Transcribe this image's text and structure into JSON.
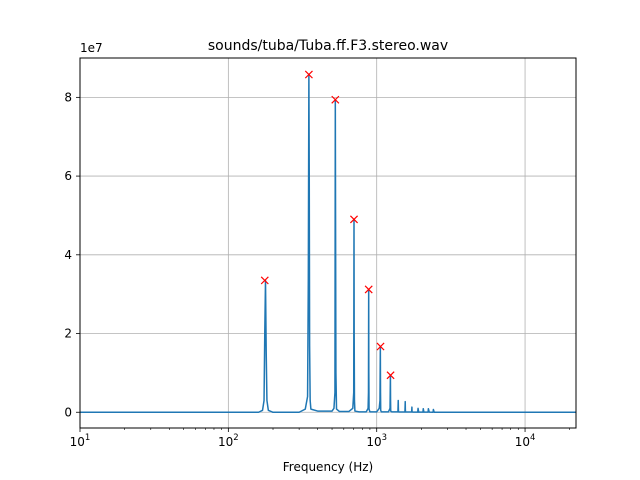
{
  "chart_data": {
    "type": "line",
    "title": "sounds/tuba/Tuba.ff.F3.stereo.wav",
    "xlabel": "Frequency (Hz)",
    "ylabel": "",
    "xscale": "log",
    "xlim": [
      10,
      22050
    ],
    "ylim": [
      -4000000,
      90000000
    ],
    "offset_text": "1e7",
    "grid": true,
    "x_ticks": [
      {
        "value": 10,
        "base": "10",
        "exp": "1"
      },
      {
        "value": 100,
        "base": "10",
        "exp": "2"
      },
      {
        "value": 1000,
        "base": "10",
        "exp": "3"
      },
      {
        "value": 10000,
        "base": "10",
        "exp": "4"
      }
    ],
    "y_ticks": [
      {
        "value": 0,
        "label": "0"
      },
      {
        "value": 20000000,
        "label": "2"
      },
      {
        "value": 40000000,
        "label": "4"
      },
      {
        "value": 60000000,
        "label": "6"
      },
      {
        "value": 80000000,
        "label": "8"
      }
    ],
    "series": [
      {
        "color": "#1f77b4",
        "style": "spectrum-line",
        "x": [
          10,
          160,
          170,
          174,
          176,
          178,
          180,
          182,
          186,
          200,
          300,
          330,
          342,
          346,
          349,
          351,
          353,
          356,
          360,
          400,
          500,
          515,
          523,
          526,
          528,
          531,
          536,
          560,
          650,
          690,
          700,
          703,
          705,
          708,
          713,
          760,
          850,
          875,
          880,
          883,
          885,
          888,
          900,
          1000,
          1040,
          1052,
          1058,
          1061,
          1064,
          1075,
          1200,
          1230,
          1237,
          1240,
          1243,
          1260,
          1390,
          1397,
          1400,
          1403,
          1420,
          1550,
          1557,
          1560,
          1563,
          1580,
          1720,
          1727,
          1730,
          1733,
          1760,
          1890,
          1900,
          1920,
          2050,
          2060,
          2080,
          2220,
          2230,
          2260,
          2400,
          2410,
          2440,
          3000,
          5000,
          22050
        ],
        "y": [
          0,
          0,
          500000,
          3000000,
          20000000,
          33500000,
          15000000,
          3000000,
          500000,
          0,
          0,
          800000,
          4000000,
          34000000,
          85800000,
          60000000,
          17000000,
          3000000,
          800000,
          300000,
          300000,
          1000000,
          5000000,
          79400000,
          50000000,
          10000000,
          800000,
          200000,
          200000,
          1000000,
          5000000,
          49000000,
          20000000,
          3000000,
          300000,
          100000,
          100000,
          1000000,
          5000000,
          31200000,
          10000000,
          800000,
          100000,
          100000,
          1000000,
          3000000,
          16700000,
          5000000,
          500000,
          100000,
          100000,
          1000000,
          9400000,
          3000000,
          300000,
          100000,
          100000,
          3000000,
          1000000,
          100000,
          50000,
          50000,
          2700000,
          800000,
          100000,
          50000,
          50000,
          1300000,
          400000,
          50000,
          30000,
          30000,
          1000000,
          30000,
          30000,
          900000,
          30000,
          20000,
          900000,
          20000,
          10000,
          700000,
          10000,
          0,
          0,
          0
        ]
      },
      {
        "color": "#ff0000",
        "style": "x-marker",
        "x": [
          176,
          349,
          526,
          703,
          883,
          1061,
          1240
        ],
        "y": [
          33500000,
          85800000,
          79400000,
          49000000,
          31200000,
          16700000,
          9400000
        ]
      }
    ]
  }
}
